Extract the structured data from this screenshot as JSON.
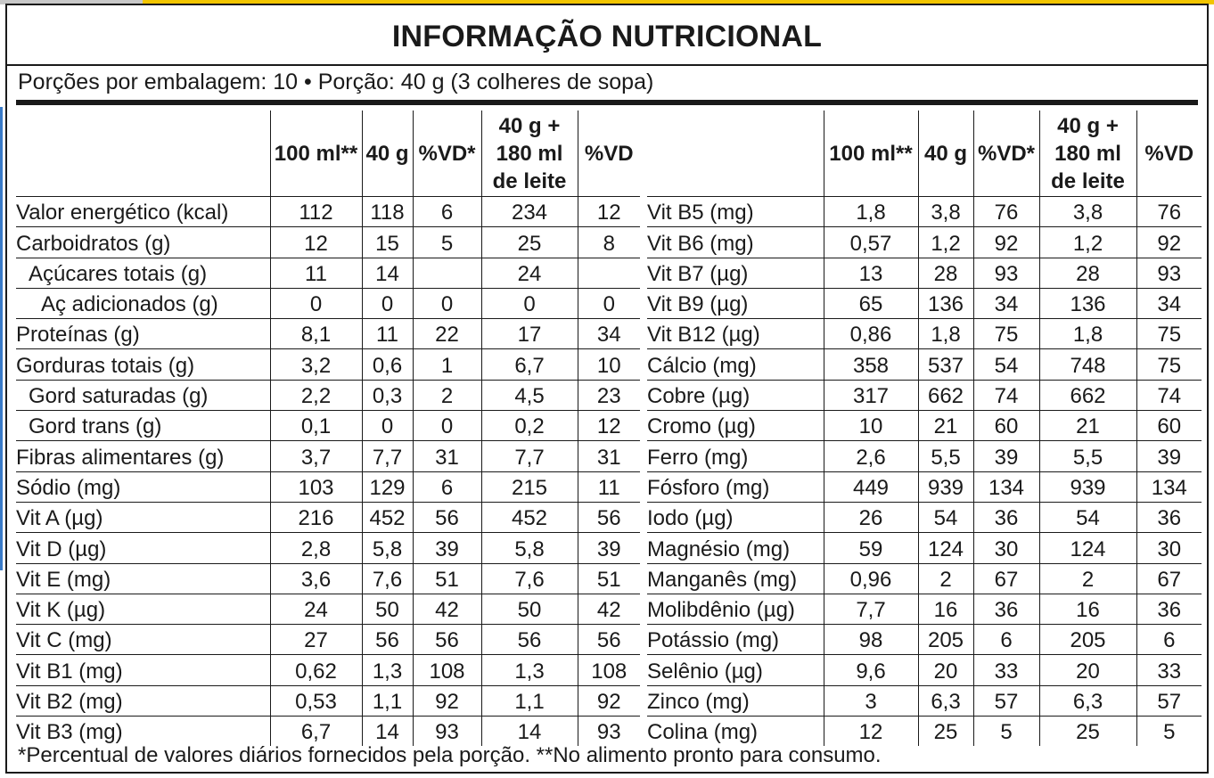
{
  "title": "INFORMAÇÃO NUTRICIONAL",
  "serving": "Porções por embalagem: 10  •  Porção: 40 g (3 colheres de sopa)",
  "headers": [
    "100 ml**",
    "40 g",
    "%VD*",
    "40 g + 180 ml de leite",
    "%VD"
  ],
  "left_rows": [
    {
      "name": "Valor energético (kcal)",
      "indent": 0,
      "values": [
        "112",
        "118",
        "6",
        "234",
        "12"
      ]
    },
    {
      "name": "Carboidratos (g)",
      "indent": 0,
      "values": [
        "12",
        "15",
        "5",
        "25",
        "8"
      ]
    },
    {
      "name": "Açúcares totais (g)",
      "indent": 1,
      "values": [
        "11",
        "14",
        "",
        "24",
        ""
      ]
    },
    {
      "name": "Aç adicionados (g)",
      "indent": 2,
      "values": [
        "0",
        "0",
        "0",
        "0",
        "0"
      ]
    },
    {
      "name": "Proteínas (g)",
      "indent": 0,
      "values": [
        "8,1",
        "11",
        "22",
        "17",
        "34"
      ]
    },
    {
      "name": "Gorduras totais (g)",
      "indent": 0,
      "values": [
        "3,2",
        "0,6",
        "1",
        "6,7",
        "10"
      ]
    },
    {
      "name": "Gord saturadas (g)",
      "indent": 1,
      "values": [
        "2,2",
        "0,3",
        "2",
        "4,5",
        "23"
      ]
    },
    {
      "name": "Gord trans (g)",
      "indent": 1,
      "values": [
        "0,1",
        "0",
        "0",
        "0,2",
        "12"
      ]
    },
    {
      "name": "Fibras alimentares (g)",
      "indent": 0,
      "values": [
        "3,7",
        "7,7",
        "31",
        "7,7",
        "31"
      ]
    },
    {
      "name": "Sódio (mg)",
      "indent": 0,
      "values": [
        "103",
        "129",
        "6",
        "215",
        "11"
      ]
    },
    {
      "name": "Vit A (µg)",
      "indent": 0,
      "values": [
        "216",
        "452",
        "56",
        "452",
        "56"
      ]
    },
    {
      "name": "Vit D (µg)",
      "indent": 0,
      "values": [
        "2,8",
        "5,8",
        "39",
        "5,8",
        "39"
      ]
    },
    {
      "name": "Vit E (mg)",
      "indent": 0,
      "values": [
        "3,6",
        "7,6",
        "51",
        "7,6",
        "51"
      ]
    },
    {
      "name": "Vit K (µg)",
      "indent": 0,
      "values": [
        "24",
        "50",
        "42",
        "50",
        "42"
      ]
    },
    {
      "name": "Vit C (mg)",
      "indent": 0,
      "values": [
        "27",
        "56",
        "56",
        "56",
        "56"
      ]
    },
    {
      "name": "Vit B1 (mg)",
      "indent": 0,
      "values": [
        "0,62",
        "1,3",
        "108",
        "1,3",
        "108"
      ]
    },
    {
      "name": "Vit B2 (mg)",
      "indent": 0,
      "values": [
        "0,53",
        "1,1",
        "92",
        "1,1",
        "92"
      ]
    },
    {
      "name": "Vit B3 (mg)",
      "indent": 0,
      "values": [
        "6,7",
        "14",
        "93",
        "14",
        "93"
      ]
    }
  ],
  "right_rows": [
    {
      "name": "Vit B5 (mg)",
      "indent": 0,
      "values": [
        "1,8",
        "3,8",
        "76",
        "3,8",
        "76"
      ]
    },
    {
      "name": "Vit B6 (mg)",
      "indent": 0,
      "values": [
        "0,57",
        "1,2",
        "92",
        "1,2",
        "92"
      ]
    },
    {
      "name": "Vit B7 (µg)",
      "indent": 0,
      "values": [
        "13",
        "28",
        "93",
        "28",
        "93"
      ]
    },
    {
      "name": "Vit B9 (µg)",
      "indent": 0,
      "values": [
        "65",
        "136",
        "34",
        "136",
        "34"
      ]
    },
    {
      "name": "Vit B12 (µg)",
      "indent": 0,
      "values": [
        "0,86",
        "1,8",
        "75",
        "1,8",
        "75"
      ]
    },
    {
      "name": "Cálcio (mg)",
      "indent": 0,
      "values": [
        "358",
        "537",
        "54",
        "748",
        "75"
      ]
    },
    {
      "name": "Cobre (µg)",
      "indent": 0,
      "values": [
        "317",
        "662",
        "74",
        "662",
        "74"
      ]
    },
    {
      "name": "Cromo (µg)",
      "indent": 0,
      "values": [
        "10",
        "21",
        "60",
        "21",
        "60"
      ]
    },
    {
      "name": "Ferro (mg)",
      "indent": 0,
      "values": [
        "2,6",
        "5,5",
        "39",
        "5,5",
        "39"
      ]
    },
    {
      "name": "Fósforo (mg)",
      "indent": 0,
      "values": [
        "449",
        "939",
        "134",
        "939",
        "134"
      ]
    },
    {
      "name": "Iodo (µg)",
      "indent": 0,
      "values": [
        "26",
        "54",
        "36",
        "54",
        "36"
      ]
    },
    {
      "name": "Magnésio (mg)",
      "indent": 0,
      "values": [
        "59",
        "124",
        "30",
        "124",
        "30"
      ]
    },
    {
      "name": "Manganês (mg)",
      "indent": 0,
      "values": [
        "0,96",
        "2",
        "67",
        "2",
        "67"
      ]
    },
    {
      "name": "Molibdênio (µg)",
      "indent": 0,
      "values": [
        "7,7",
        "16",
        "36",
        "16",
        "36"
      ]
    },
    {
      "name": "Potássio (mg)",
      "indent": 0,
      "values": [
        "98",
        "205",
        "6",
        "205",
        "6"
      ]
    },
    {
      "name": "Selênio (µg)",
      "indent": 0,
      "values": [
        "9,6",
        "20",
        "33",
        "20",
        "33"
      ]
    },
    {
      "name": "Zinco (mg)",
      "indent": 0,
      "values": [
        "3",
        "6,3",
        "57",
        "6,3",
        "57"
      ]
    },
    {
      "name": "Colina (mg)",
      "indent": 0,
      "values": [
        "12",
        "25",
        "5",
        "25",
        "5"
      ]
    }
  ],
  "footnote": "*Percentual de valores diários fornecidos pela porção.  **No alimento pronto para consumo."
}
